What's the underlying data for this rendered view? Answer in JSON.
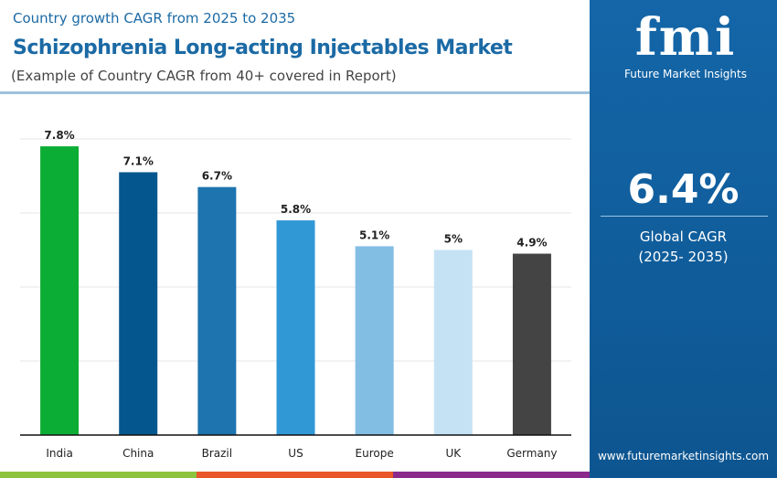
{
  "header": {
    "subtitle": "Country growth CAGR from 2025 to 2035",
    "title": "Schizophrenia Long-acting Injectables Market",
    "note": "(Example of Country CAGR from 40+ covered in Report)"
  },
  "brand": {
    "logo_text": "fmi",
    "name": "Future Market Insights",
    "url": "www.futuremarketinsights.com"
  },
  "summary": {
    "value": "6.4%",
    "label": "Global CAGR",
    "period": "(2025- 2035)"
  },
  "colors": {
    "accent": "#1466a8",
    "stripes": [
      "#8cc43f",
      "#e8562a",
      "#8b2a8c"
    ]
  },
  "chart_data": {
    "type": "bar",
    "categories": [
      "India",
      "China",
      "Brazil",
      "US",
      "Europe",
      "UK",
      "Germany"
    ],
    "values": [
      7.8,
      7.1,
      6.7,
      5.8,
      5.1,
      5,
      4.9
    ],
    "labels": [
      "7.8%",
      "7.1%",
      "6.7%",
      "5.8%",
      "5.1%",
      "5%",
      "4.9%"
    ],
    "colors": [
      "#0cad34",
      "#04578e",
      "#1d74ae",
      "#3198d6",
      "#82bde3",
      "#c5e2f4",
      "#444444"
    ],
    "ylim": [
      0,
      8
    ],
    "grid": true,
    "xlabel": "",
    "ylabel": ""
  }
}
